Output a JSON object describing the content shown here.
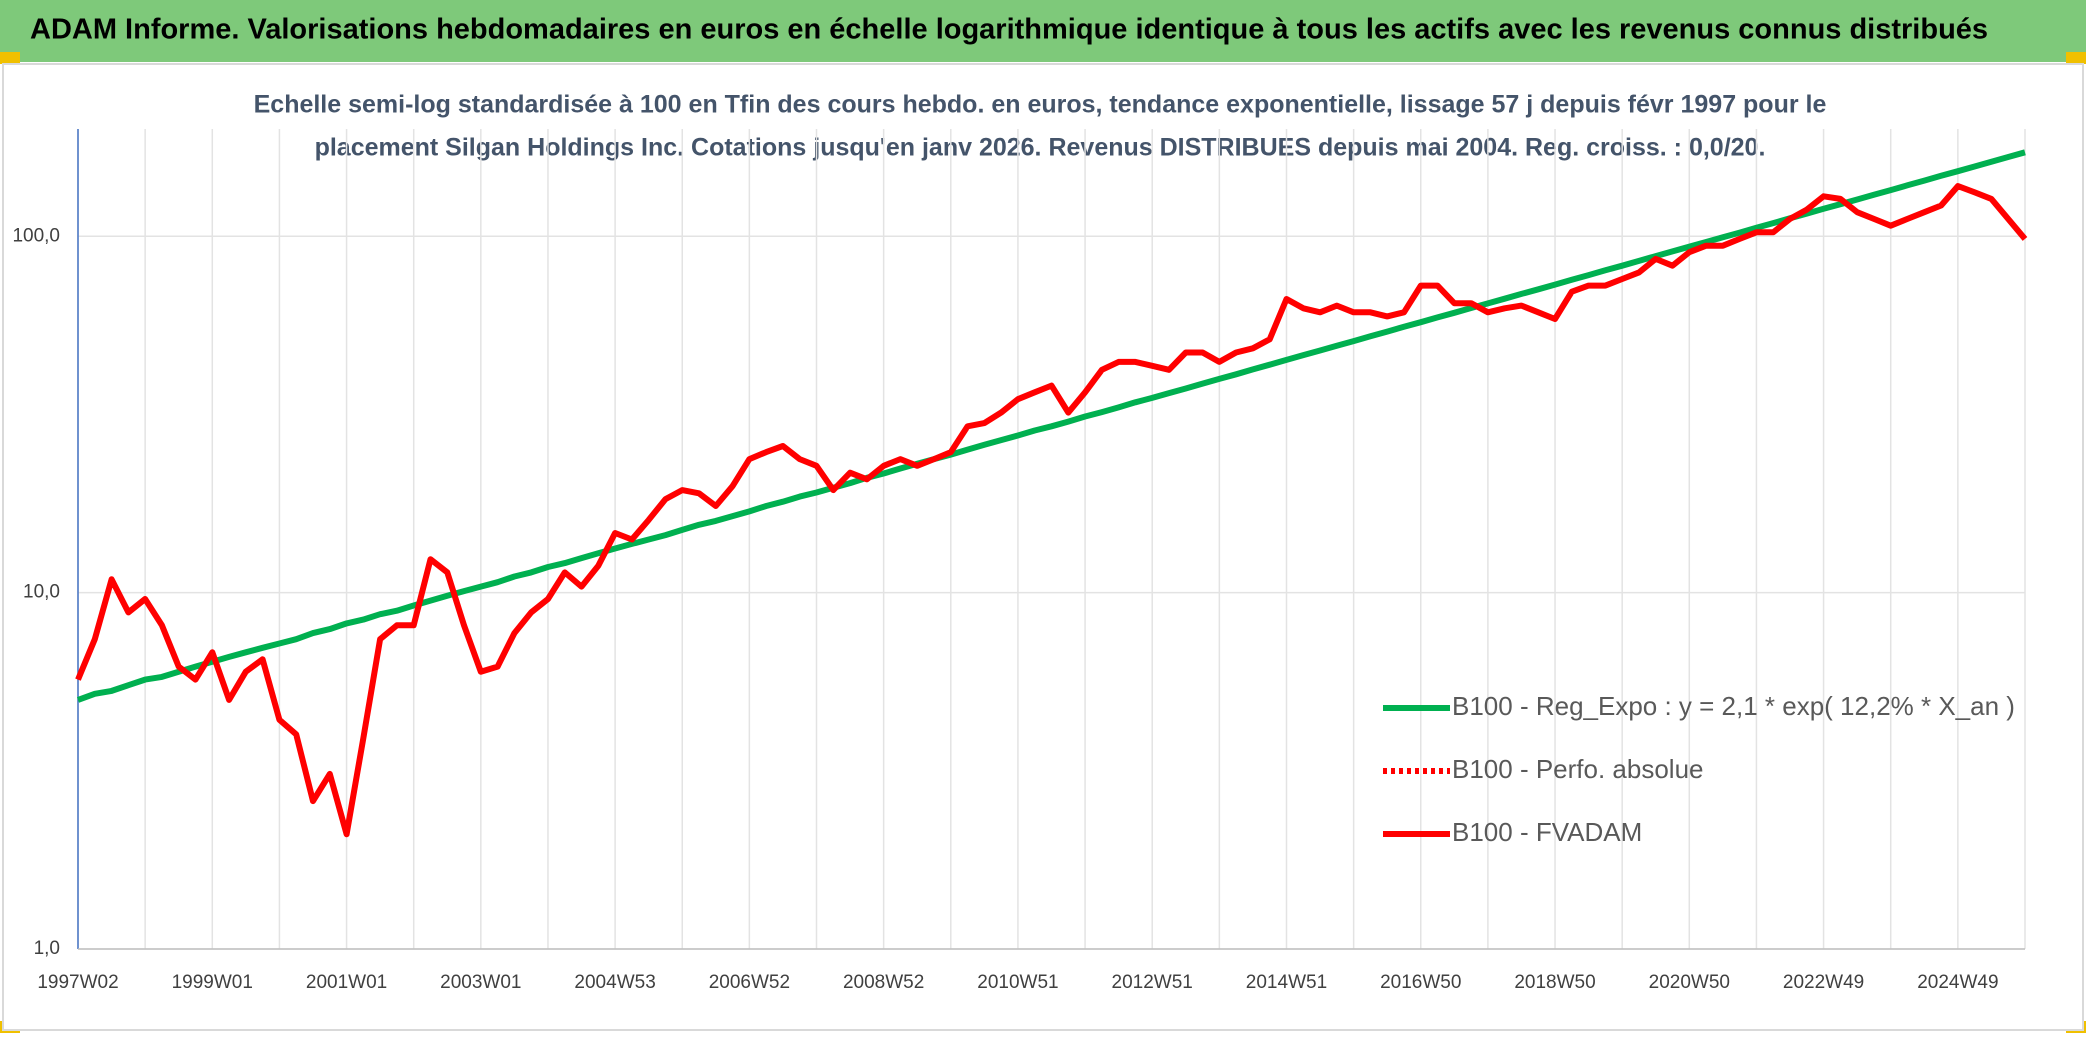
{
  "chart_data": {
    "type": "line",
    "title": "ADAM Informe. Valorisations hebdomadaires en euros en échelle logarithmique identique à tous les actifs avec les revenus connus distribués",
    "subtitle": [
      "Echelle semi-log standardisée à 100 en Tfin des cours hebdo. en euros, tendance exponentielle, lissage 57 j depuis févr 1997 pour le",
      "placement Silgan Holdings Inc. Cotations jusqu'en janv 2026. Revenus DISTRIBUES depuis mai 2004. Reg. croiss. : 0,0/20."
    ],
    "log_scale": true,
    "grid": true,
    "ylim": [
      1,
      200
    ],
    "yticks": [
      {
        "value": 1,
        "label": "1,0"
      },
      {
        "value": 10,
        "label": "10,0"
      },
      {
        "value": 100,
        "label": "100,0"
      }
    ],
    "categories": [
      "1997W02",
      null,
      null,
      null,
      null,
      null,
      null,
      null,
      "1999W01",
      null,
      null,
      null,
      null,
      null,
      null,
      null,
      "2001W01",
      null,
      null,
      null,
      null,
      null,
      null,
      null,
      "2003W01",
      null,
      null,
      null,
      null,
      null,
      null,
      null,
      "2004W53",
      null,
      null,
      null,
      null,
      null,
      null,
      null,
      "2006W52",
      null,
      null,
      null,
      null,
      null,
      null,
      null,
      "2008W52",
      null,
      null,
      null,
      null,
      null,
      null,
      null,
      "2010W51",
      null,
      null,
      null,
      null,
      null,
      null,
      null,
      "2012W51",
      null,
      null,
      null,
      null,
      null,
      null,
      null,
      "2014W51",
      null,
      null,
      null,
      null,
      null,
      null,
      null,
      "2016W50",
      null,
      null,
      null,
      null,
      null,
      null,
      null,
      "2018W50",
      null,
      null,
      null,
      null,
      null,
      null,
      null,
      "2020W50",
      null,
      null,
      null,
      null,
      null,
      null,
      null,
      "2022W49",
      null,
      null,
      null,
      null,
      null,
      null,
      null,
      "2024W49",
      null,
      null,
      null,
      null
    ],
    "series": [
      {
        "name": "B100 - Reg_Expo : y = 2,1 * exp( 12,2% *  X_an )",
        "color": "#00b050",
        "style": "solid",
        "values": [
          5.0,
          5.2,
          5.3,
          5.5,
          5.7,
          5.8,
          6.0,
          6.2,
          6.4,
          6.6,
          6.8,
          7.0,
          7.2,
          7.4,
          7.7,
          7.9,
          8.2,
          8.4,
          8.7,
          8.9,
          9.2,
          9.5,
          9.8,
          10.1,
          10.4,
          10.7,
          11.1,
          11.4,
          11.8,
          12.1,
          12.5,
          12.9,
          13.3,
          13.7,
          14.1,
          14.5,
          15.0,
          15.5,
          15.9,
          16.4,
          16.9,
          17.5,
          18.0,
          18.6,
          19.1,
          19.7,
          20.3,
          21.0,
          21.6,
          22.3,
          23.0,
          23.7,
          24.4,
          25.2,
          26.0,
          26.8,
          27.6,
          28.5,
          29.3,
          30.2,
          31.2,
          32.1,
          33.1,
          34.2,
          35.2,
          36.3,
          37.4,
          38.6,
          39.8,
          41.0,
          42.3,
          43.6,
          45.0,
          46.4,
          47.8,
          49.3,
          50.8,
          52.4,
          54.0,
          55.7,
          57.4,
          59.2,
          61.0,
          62.9,
          64.8,
          66.8,
          68.9,
          71.0,
          73.2,
          75.5,
          77.8,
          80.3,
          82.7,
          85.3,
          88.0,
          90.7,
          93.5,
          96.4,
          99.4,
          102.4,
          105.6,
          108.9,
          112.3,
          115.8,
          119.4,
          123.0,
          126.8,
          130.8,
          134.8,
          139.0,
          143.3,
          147.8,
          152.3,
          157.0,
          161.9,
          166.9,
          172.1
        ]
      },
      {
        "name": "B100 - Perfo. absolue",
        "color": "#ff0000",
        "style": "dotted"
      },
      {
        "name": "B100 - FVADAM",
        "color": "#ff0000",
        "style": "solid",
        "values": [
          5.7,
          7.4,
          10.9,
          8.8,
          9.6,
          8.1,
          6.2,
          5.7,
          6.8,
          5.0,
          6.0,
          6.5,
          4.4,
          4.0,
          2.6,
          3.1,
          2.1,
          3.9,
          7.4,
          8.1,
          8.1,
          12.4,
          11.4,
          8.1,
          6.0,
          6.2,
          7.7,
          8.8,
          9.6,
          11.4,
          10.4,
          11.9,
          14.7,
          14.1,
          16.0,
          18.3,
          19.4,
          19.0,
          17.5,
          19.9,
          23.7,
          24.8,
          25.8,
          23.7,
          22.7,
          19.4,
          21.7,
          20.8,
          22.7,
          23.7,
          22.7,
          23.7,
          24.8,
          29.3,
          29.9,
          32.0,
          34.9,
          36.5,
          38.1,
          32.0,
          36.5,
          42.2,
          44.4,
          44.4,
          43.3,
          42.2,
          47.2,
          47.2,
          44.4,
          47.2,
          48.5,
          51.4,
          66.7,
          62.8,
          61.2,
          63.9,
          61.2,
          61.2,
          59.6,
          61.2,
          72.7,
          72.7,
          64.9,
          64.9,
          61.2,
          62.8,
          63.9,
          61.2,
          58.6,
          69.9,
          72.7,
          72.7,
          75.9,
          79.2,
          86.4,
          82.7,
          90.2,
          94.1,
          94.1,
          98.3,
          102.6,
          102.6,
          111.9,
          118.8,
          129.5,
          127.3,
          116.8,
          111.9,
          107.1,
          111.9,
          116.8,
          122.0,
          138.3,
          132.9,
          127.3,
          111.9,
          98.3
        ]
      }
    ]
  }
}
